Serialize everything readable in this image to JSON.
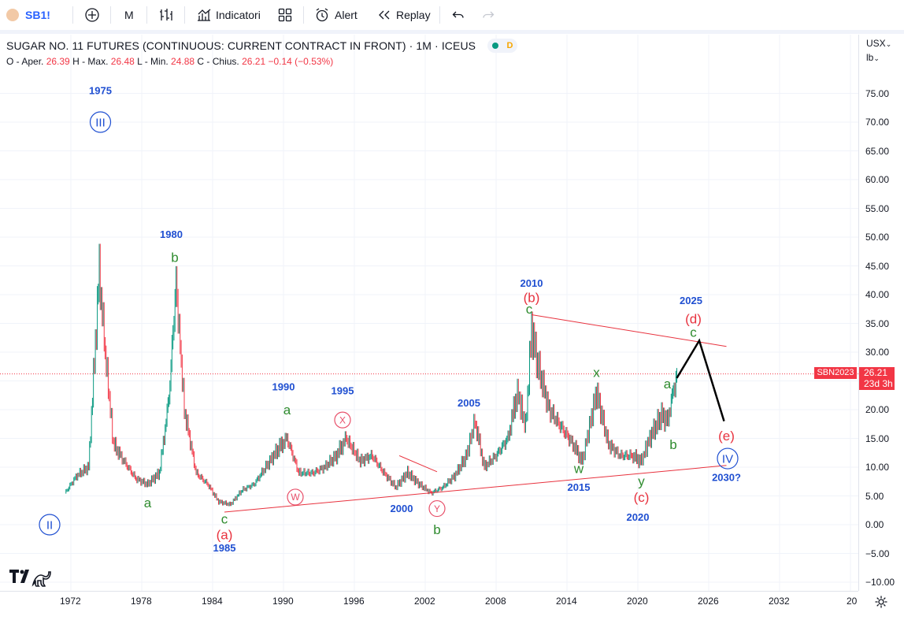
{
  "toolbar": {
    "symbol": "SB1!",
    "interval": "M",
    "indicators_label": "Indicatori",
    "alert_label": "Alert",
    "replay_label": "Replay"
  },
  "header": {
    "title": "SUGAR NO. 11 FUTURES (CONTINUOUS: CURRENT CONTRACT IN FRONT) · 1M · ICEUS",
    "status_letter": "D",
    "ohlc": {
      "o_label": "O - Aper.",
      "o_value": "26.39",
      "h_label": "H - Max.",
      "h_value": "26.48",
      "l_label": "L - Min.",
      "l_value": "24.88",
      "c_label": "C - Chius.",
      "c_value": "26.21",
      "change": "−0.14 (−0.53%)"
    }
  },
  "price_scale": {
    "currency": "USX",
    "unit": "lb",
    "last_price": "26.21",
    "countdown": "23d 3h",
    "series_tag": "SBN2023"
  },
  "colors": {
    "up": "#089981",
    "down": "#f23645",
    "wave_blue": "#1f4fd1",
    "wave_green": "#2e8b2e",
    "wave_red": "#e8323e"
  },
  "chart_data": {
    "type": "line",
    "title": "SUGAR NO. 11 FUTURES (CONTINUOUS: CURRENT CONTRACT IN FRONT) · 1M · ICEUS",
    "ylabel": "USX / lb",
    "ylim": [
      -10,
      80
    ],
    "yticks": [
      "75.00",
      "70.00",
      "65.00",
      "60.00",
      "55.00",
      "50.00",
      "45.00",
      "40.00",
      "35.00",
      "30.00",
      "25.00",
      "20.00",
      "15.00",
      "10.00",
      "5.00",
      "0.00",
      "−5.00",
      "−10.00"
    ],
    "xticks": [
      "1972",
      "1978",
      "1984",
      "1990",
      "1996",
      "2002",
      "2008",
      "2014",
      "2020",
      "2026",
      "2032",
      "20"
    ],
    "series": [
      {
        "name": "SB1!",
        "x": [
          1971.5,
          1972.5,
          1973.5,
          1974.4,
          1974.9,
          1975.6,
          1976.5,
          1977.5,
          1978.5,
          1979.5,
          1980.3,
          1980.9,
          1981.6,
          1982.6,
          1983.6,
          1984.5,
          1985.5,
          1986.5,
          1987.5,
          1988.5,
          1989.5,
          1990.3,
          1991.3,
          1992.5,
          1993.5,
          1994.5,
          1995.3,
          1996.5,
          1997.5,
          1998.5,
          1999.5,
          2000.5,
          2001.5,
          2002.5,
          2003.5,
          2004.5,
          2005.5,
          2006.2,
          2007.0,
          2008.0,
          2009.0,
          2009.8,
          2010.5,
          2011.0,
          2011.5,
          2012.5,
          2013.5,
          2014.5,
          2015.3,
          2016.5,
          2017.5,
          2018.5,
          2019.5,
          2020.3,
          2021.0,
          2022.0,
          2022.5,
          2023.3
        ],
        "y": [
          5.5,
          8.5,
          10,
          44,
          30,
          14,
          11,
          8,
          7,
          9,
          22,
          42,
          20,
          9,
          7,
          4,
          3.5,
          6,
          7,
          10,
          13,
          15,
          9,
          9,
          10,
          12,
          15,
          11,
          12,
          9,
          6.5,
          9,
          7,
          5.5,
          6.5,
          8.5,
          12,
          18,
          10,
          12,
          15,
          23,
          17,
          34,
          28,
          20,
          17,
          14,
          11,
          23,
          14,
          12,
          12,
          11,
          15,
          19,
          18,
          26.2
        ]
      }
    ],
    "trendlines": [
      {
        "name": "upper",
        "points": [
          [
            2011.0,
            36.5
          ],
          [
            2027.5,
            31.0
          ]
        ]
      },
      {
        "name": "lower",
        "points": [
          [
            1985.0,
            2.2
          ],
          [
            2027.5,
            10.3
          ]
        ]
      },
      {
        "name": "small",
        "points": [
          [
            1999.8,
            12.0
          ],
          [
            2003.0,
            9.2
          ]
        ]
      },
      {
        "name": "projection",
        "points": [
          [
            2023.3,
            25.5
          ],
          [
            2025.2,
            32.0
          ],
          [
            2027.3,
            18.0
          ]
        ]
      }
    ],
    "annotations": [
      {
        "text": "1975",
        "color": "blue",
        "x": 1974.5,
        "y": 75.5
      },
      {
        "text": "III",
        "color": "blue",
        "circle": true,
        "x": 1974.5,
        "y": 70
      },
      {
        "text": "II",
        "color": "blue",
        "circle": true,
        "x": 1970.2,
        "y": 0
      },
      {
        "text": "1980",
        "color": "blue",
        "x": 1980.5,
        "y": 50.5
      },
      {
        "text": "b",
        "color": "green",
        "x": 1980.8,
        "y": 46.5
      },
      {
        "text": "a",
        "color": "green",
        "x": 1978.5,
        "y": 3.8
      },
      {
        "text": "c",
        "color": "green",
        "x": 1985.0,
        "y": 1.0
      },
      {
        "text": "(a)",
        "color": "red",
        "x": 1985.0,
        "y": -1.7
      },
      {
        "text": "1985",
        "color": "blue",
        "x": 1985.0,
        "y": -4.0
      },
      {
        "text": "1990",
        "color": "blue",
        "x": 1990.0,
        "y": 24.0
      },
      {
        "text": "a",
        "color": "green",
        "x": 1990.3,
        "y": 20.0
      },
      {
        "text": "W",
        "color": "pink",
        "circle": true,
        "x": 1991.0,
        "y": 4.8
      },
      {
        "text": "1995",
        "color": "blue",
        "x": 1995.0,
        "y": 23.3
      },
      {
        "text": "X",
        "color": "pink",
        "circle": true,
        "x": 1995.0,
        "y": 18.2
      },
      {
        "text": "2000",
        "color": "blue",
        "x": 2000.0,
        "y": 2.8
      },
      {
        "text": "Y",
        "color": "pink",
        "circle": true,
        "x": 2003.0,
        "y": 2.8
      },
      {
        "text": "b",
        "color": "green",
        "x": 2003.0,
        "y": -0.8
      },
      {
        "text": "2005",
        "color": "blue",
        "x": 2005.7,
        "y": 21.2
      },
      {
        "text": "2010",
        "color": "blue",
        "x": 2011.0,
        "y": 42.0
      },
      {
        "text": "(b)",
        "color": "red",
        "x": 2011.0,
        "y": 39.5
      },
      {
        "text": "c",
        "color": "green",
        "x": 2010.8,
        "y": 37.5
      },
      {
        "text": "x",
        "color": "green",
        "x": 2016.5,
        "y": 26.5
      },
      {
        "text": "w",
        "color": "green",
        "x": 2015.0,
        "y": 9.8
      },
      {
        "text": "2015",
        "color": "blue",
        "x": 2015.0,
        "y": 6.5
      },
      {
        "text": "y",
        "color": "green",
        "x": 2020.3,
        "y": 7.6
      },
      {
        "text": "(c)",
        "color": "red",
        "x": 2020.3,
        "y": 4.8
      },
      {
        "text": "2020",
        "color": "blue",
        "x": 2020.0,
        "y": 1.3
      },
      {
        "text": "2025",
        "color": "blue",
        "x": 2024.5,
        "y": 39.0
      },
      {
        "text": "(d)",
        "color": "red",
        "x": 2024.7,
        "y": 35.8
      },
      {
        "text": "c",
        "color": "green",
        "x": 2024.7,
        "y": 33.5
      },
      {
        "text": "a",
        "color": "green",
        "x": 2022.5,
        "y": 24.5
      },
      {
        "text": "b",
        "color": "green",
        "x": 2023.0,
        "y": 14.0
      },
      {
        "text": "(e)",
        "color": "red",
        "x": 2027.5,
        "y": 15.5
      },
      {
        "text": "IV",
        "color": "blue",
        "circle": true,
        "x": 2027.6,
        "y": 11.5
      },
      {
        "text": "2030?",
        "color": "blue",
        "x": 2027.5,
        "y": 8.2
      }
    ]
  }
}
